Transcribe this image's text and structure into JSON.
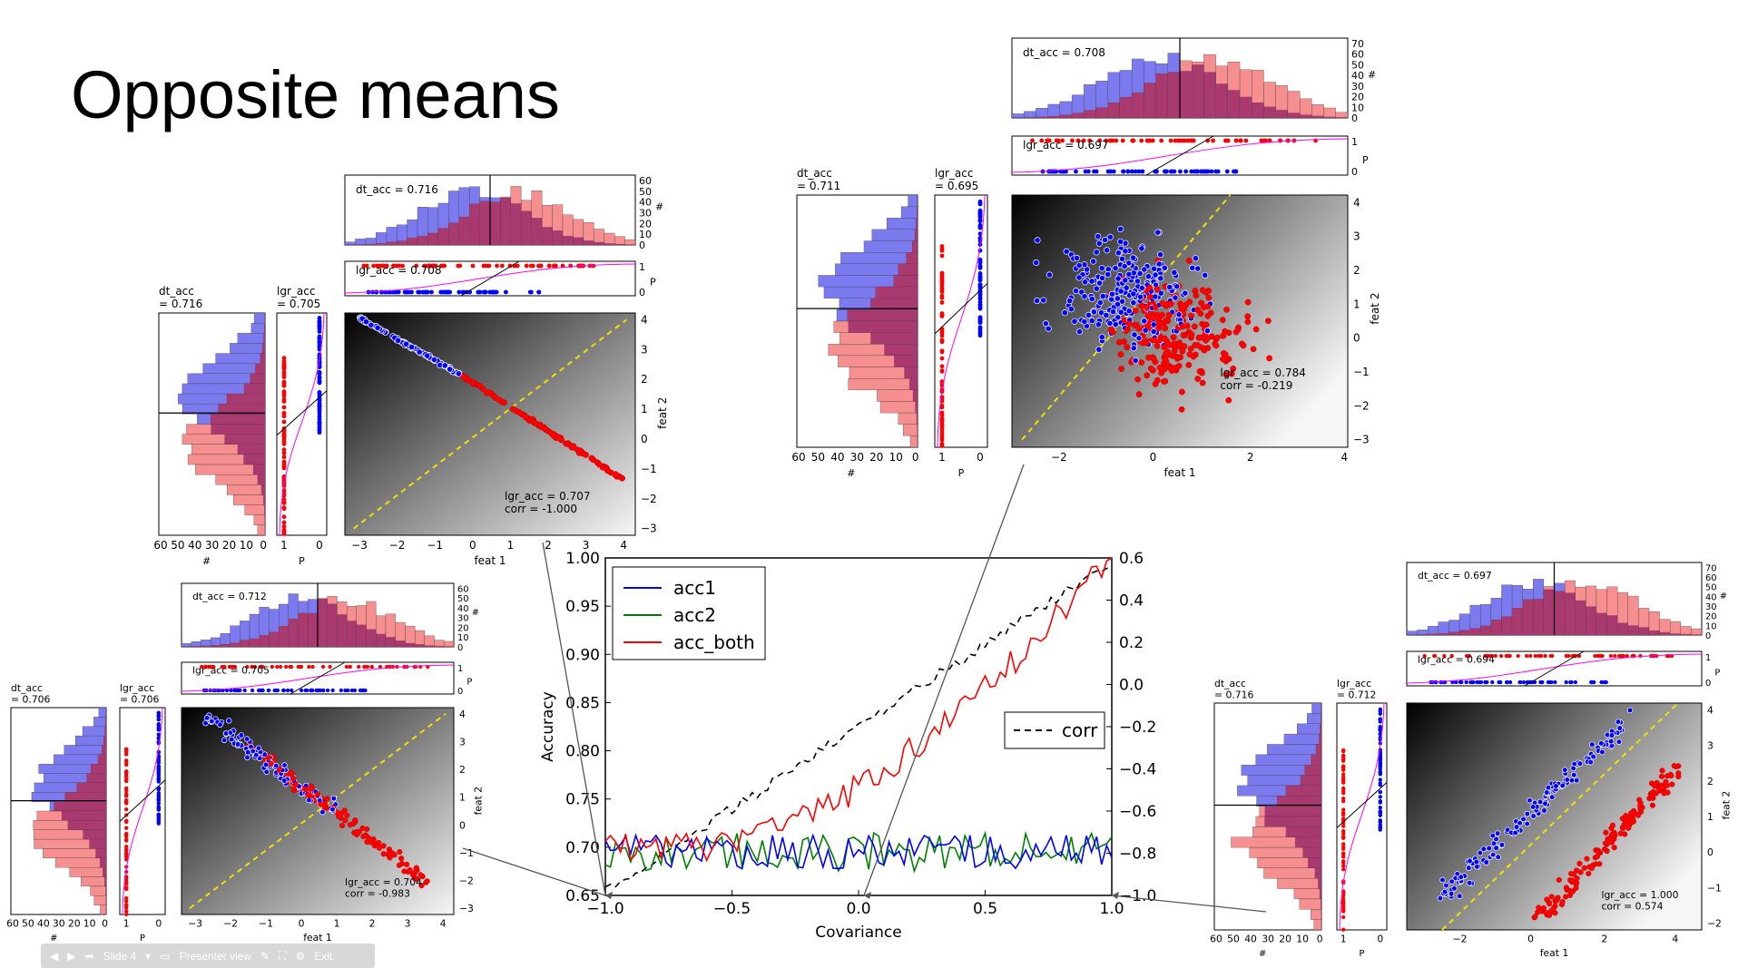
{
  "slide": {
    "title": "Opposite means"
  },
  "main_chart": {
    "xlabel": "Covariance",
    "ylabel": "Accuracy",
    "x_ticks": [
      "−1.0",
      "−0.5",
      "0.0",
      "0.5",
      "1.0"
    ],
    "y_ticks": [
      "0.65",
      "0.70",
      "0.75",
      "0.80",
      "0.85",
      "0.90",
      "0.95",
      "1.00"
    ],
    "y2_ticks": [
      "−1.0",
      "−0.8",
      "−0.6",
      "−0.4",
      "−0.2",
      "0.0",
      "0.2",
      "0.4",
      "0.6"
    ],
    "legend": [
      "acc1",
      "acc2",
      "acc_both"
    ],
    "legend_corr": "corr"
  },
  "panels": [
    {
      "id": "p1",
      "dt_top": "dt_acc = 0.716",
      "lgr_top": "lgr_acc = 0.708",
      "dt_side": [
        "dt_acc",
        "= 0.716"
      ],
      "lgr_side": [
        "lgr_acc",
        "= 0.705"
      ],
      "scatter_acc": "lgr_acc = 0.707",
      "scatter_corr": "corr = -1.000"
    },
    {
      "id": "p2",
      "dt_top": "dt_acc = 0.712",
      "lgr_top": "lgr_acc = 0.705",
      "dt_side": [
        "dt_acc",
        "= 0.706"
      ],
      "lgr_side": [
        "lgr_acc",
        "= 0.706"
      ],
      "scatter_acc": "lgr_acc = 0.704",
      "scatter_corr": "corr = -0.983"
    },
    {
      "id": "p3",
      "dt_top": "dt_acc = 0.708",
      "lgr_top": "lgr_acc = 0.697",
      "dt_side": [
        "dt_acc",
        "= 0.711"
      ],
      "lgr_side": [
        "lgr_acc",
        "= 0.695"
      ],
      "scatter_acc": "lgr_acc = 0.784",
      "scatter_corr": "corr = -0.219"
    },
    {
      "id": "p4",
      "dt_top": "dt_acc = 0.697",
      "lgr_top": "lgr_acc = 0.694",
      "dt_side": [
        "dt_acc",
        "= 0.716"
      ],
      "lgr_side": [
        "lgr_acc",
        "= 0.712"
      ],
      "scatter_acc": "lgr_acc = 1.000",
      "scatter_corr": "corr = 0.574"
    }
  ],
  "panel_labels": {
    "hash": "#",
    "p": "P",
    "feat1": "feat 1",
    "feat2": "feat 2"
  },
  "toolbar": {
    "slide": "Slide 4",
    "presenter": "Presenter view",
    "exit": "Exit"
  },
  "colors": {
    "blue": "#0000ff",
    "green": "#008000",
    "red": "#ff0000",
    "hist_blue": "#7b7bef",
    "hist_red": "#f47b7b",
    "hist_overlap": "#9e2f6b",
    "yellow": "#f0e000"
  }
}
